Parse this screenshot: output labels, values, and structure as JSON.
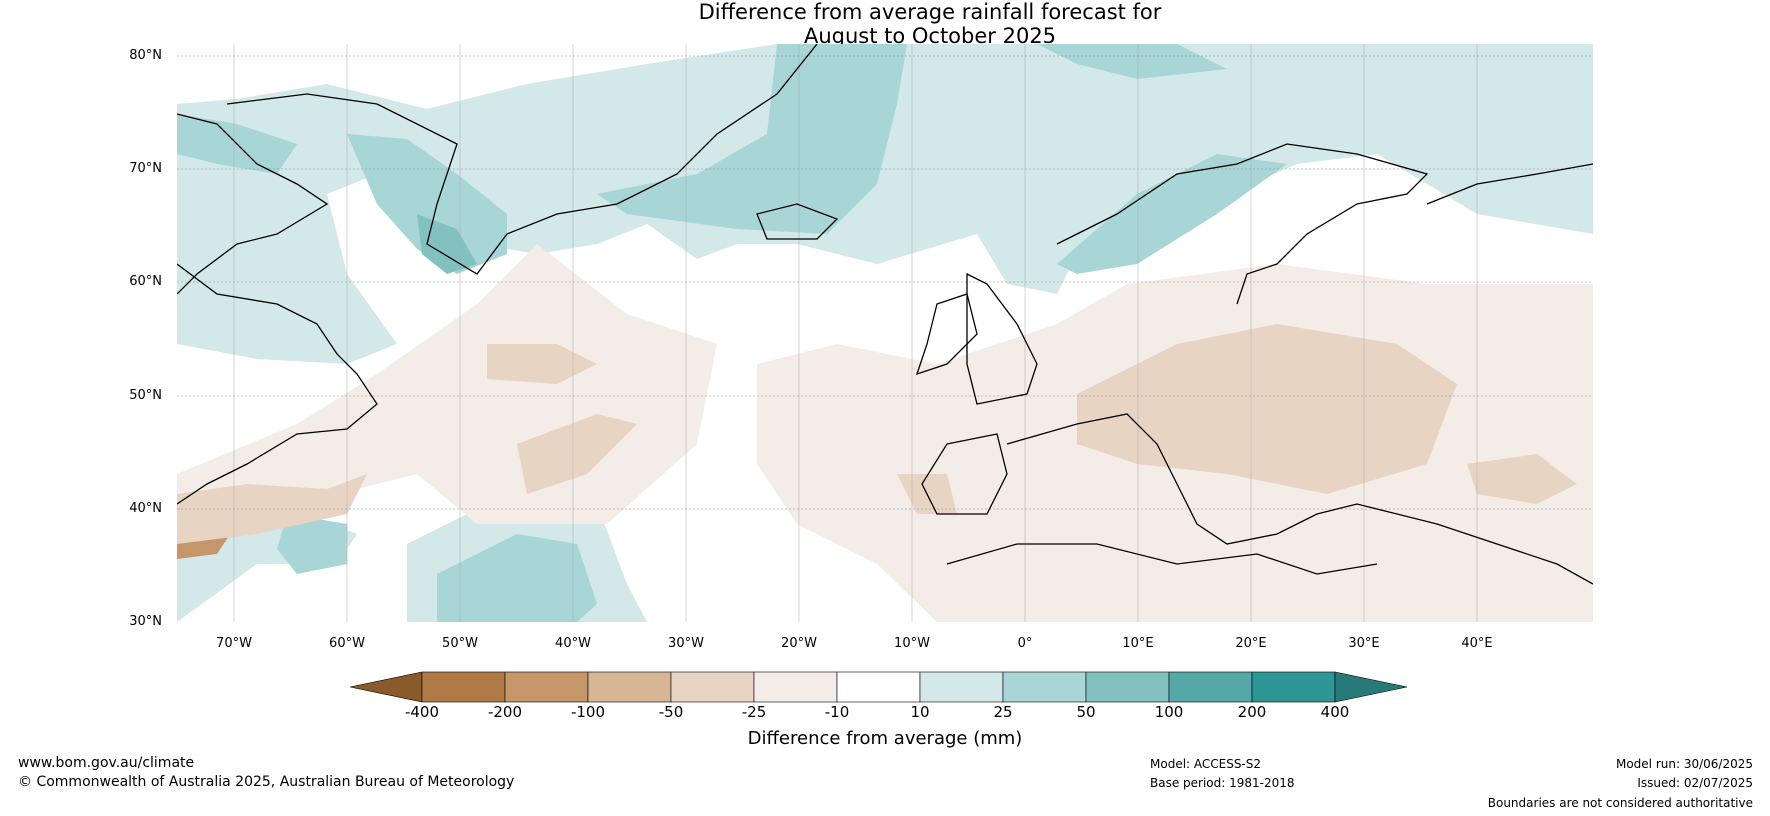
{
  "title_line1": "Difference from average rainfall forecast for",
  "title_line2": "August to October 2025",
  "latitudes": [
    "80°N",
    "70°N",
    "60°N",
    "50°N",
    "40°N",
    "30°N"
  ],
  "longitudes": [
    "70°W",
    "60°W",
    "50°W",
    "40°W",
    "30°W",
    "20°W",
    "10°W",
    "0°",
    "10°E",
    "20°E",
    "30°E",
    "40°E"
  ],
  "colorbar": {
    "title": "Difference from average (mm)",
    "ticks": [
      "-400",
      "-200",
      "-100",
      "-50",
      "-25",
      "-10",
      "10",
      "25",
      "50",
      "100",
      "200",
      "400"
    ],
    "colors": [
      "#8b5a2b",
      "#b07a46",
      "#c49669",
      "#d7b695",
      "#e8d4c2",
      "#f4ede7",
      "#ffffff",
      "#d3e8e8",
      "#a8d5d5",
      "#83c1c1",
      "#56a8a8",
      "#2f9696",
      "#27797a"
    ]
  },
  "footer": {
    "url": "www.bom.gov.au/climate",
    "copyright": "© Commonwealth of Australia 2025, Australian Bureau of Meteorology",
    "model": "Model: ACCESS-S2",
    "base_period": "Base period: 1981-2018",
    "model_run": "Model run: 30/06/2025",
    "issued": "Issued: 02/07/2025",
    "disclaimer": "Boundaries are not considered authoritative"
  }
}
